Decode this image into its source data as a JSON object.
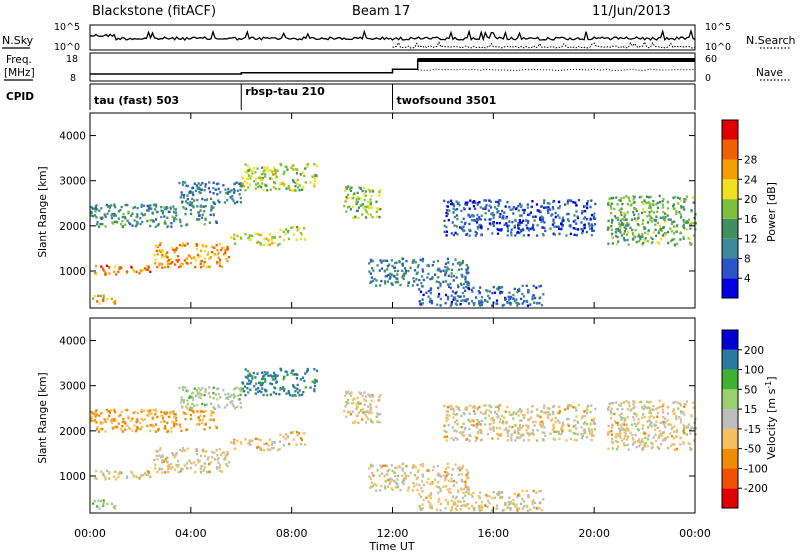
{
  "header": {
    "station": "Blackstone (fitACF)",
    "beam": "Beam 17",
    "date": "11/Jun/2013"
  },
  "left_labels": {
    "nsky": "N.Sky",
    "freq_line1": "Freq.",
    "freq_line2": "[MHz]",
    "cpid": "CPID"
  },
  "right_labels": {
    "nsearch": "N.Search",
    "nave": "Nave"
  },
  "noise_axis": {
    "left_ticks": [
      "10^5",
      "10^0"
    ],
    "right_ticks": [
      "10^5",
      "10^0"
    ]
  },
  "freq_axis": {
    "left_ticks": [
      "18",
      "8"
    ],
    "right_ticks": [
      "60",
      "0"
    ]
  },
  "cpid_segments": [
    {
      "label": "tau (fast) 503",
      "start_hour": 0
    },
    {
      "label": "rbsp-tau 210",
      "start_hour": 6
    },
    {
      "label": "twofsound 3501",
      "start_hour": 12
    }
  ],
  "time_axis": {
    "label": "Time UT",
    "ticks": [
      "00:00",
      "04:00",
      "08:00",
      "12:00",
      "16:00",
      "20:00",
      "00:00"
    ],
    "tick_hours": [
      0,
      4,
      8,
      12,
      16,
      20,
      24
    ]
  },
  "range_axis": {
    "label": "Slant Range [km]",
    "ticks": [
      "1000",
      "2000",
      "3000",
      "4000"
    ],
    "tick_values": [
      1000,
      2000,
      3000,
      4000
    ],
    "range": [
      180,
      4500
    ]
  },
  "power_scale": {
    "label": "Power [dB]",
    "ticks": [
      "4",
      "8",
      "12",
      "16",
      "20",
      "24",
      "28"
    ],
    "colors": [
      "#0000e0",
      "#2a55c8",
      "#3f8a9a",
      "#3f8f5f",
      "#7cc040",
      "#f0e020",
      "#f5a000",
      "#f06000",
      "#e00000"
    ]
  },
  "velocity_scale": {
    "label": "Velocity [m s",
    "label_exp": "-1",
    "label_end": "]",
    "ticks": [
      "-200",
      "-100",
      "-50",
      "-15",
      "15",
      "50",
      "100",
      "200"
    ],
    "colors": [
      "#e00000",
      "#f05000",
      "#f08c00",
      "#f5c060",
      "#bdbdbd",
      "#9ad070",
      "#40b030",
      "#2a7aa0",
      "#0000d0"
    ]
  },
  "chart_data": {
    "type": "heatmap",
    "title": "Blackstone (fitACF) Beam 17 11/Jun/2013",
    "xlabel": "Time UT",
    "xlim_hours": [
      0,
      24
    ],
    "ylabel": "Slant Range [km]",
    "ylim": [
      180,
      4500
    ],
    "panels": [
      "Power [dB]",
      "Velocity [m s-1]"
    ],
    "frequency_mhz_by_period": [
      {
        "start_hour": 0,
        "end_hour": 6,
        "freq_mhz": 10.5
      },
      {
        "start_hour": 6,
        "end_hour": 12,
        "freq_mhz": 11
      },
      {
        "start_hour": 12,
        "end_hour": 13,
        "freq_mhz": 12.5
      },
      {
        "start_hour": 13,
        "end_hour": 24,
        "freq_mhz": 16.5
      }
    ],
    "echo_bands": [
      {
        "t0": 0.0,
        "t1": 2.5,
        "r0": 950,
        "r1": 1150,
        "power_db": 28,
        "velocity": -15
      },
      {
        "t0": 2.5,
        "t1": 5.5,
        "r0": 1100,
        "r1": 1650,
        "power_db": 26,
        "velocity": -15
      },
      {
        "t0": 5.5,
        "t1": 7.5,
        "r0": 1600,
        "r1": 1850,
        "power_db": 22,
        "velocity": -30
      },
      {
        "t0": 7.5,
        "t1": 8.5,
        "r0": 1700,
        "r1": 2000,
        "power_db": 20,
        "velocity": -30
      },
      {
        "t0": 0.0,
        "t1": 5.0,
        "r0": 2000,
        "r1": 2500,
        "power_db": 12,
        "velocity": -60
      },
      {
        "t0": 3.5,
        "t1": 6.0,
        "r0": 2500,
        "r1": 3000,
        "power_db": 10,
        "velocity": 20
      },
      {
        "t0": 6.0,
        "t1": 9.0,
        "r0": 2800,
        "r1": 3400,
        "power_db": 20,
        "velocity": 120
      },
      {
        "t0": 10.0,
        "t1": 11.5,
        "r0": 2200,
        "r1": 2900,
        "power_db": 18,
        "velocity": -15
      },
      {
        "t0": 11.0,
        "t1": 15.0,
        "r0": 700,
        "r1": 1300,
        "power_db": 10,
        "velocity": -15
      },
      {
        "t0": 13.0,
        "t1": 18.0,
        "r0": 250,
        "r1": 700,
        "power_db": 8,
        "velocity": -15
      },
      {
        "t0": 14.0,
        "t1": 20.0,
        "r0": 1800,
        "r1": 2600,
        "power_db": 6,
        "velocity": -15
      },
      {
        "t0": 20.5,
        "t1": 24.0,
        "r0": 1600,
        "r1": 2700,
        "power_db": 16,
        "velocity": -15
      },
      {
        "t0": 0.0,
        "t1": 1.0,
        "r0": 300,
        "r1": 500,
        "power_db": 24,
        "velocity": 30
      }
    ]
  }
}
